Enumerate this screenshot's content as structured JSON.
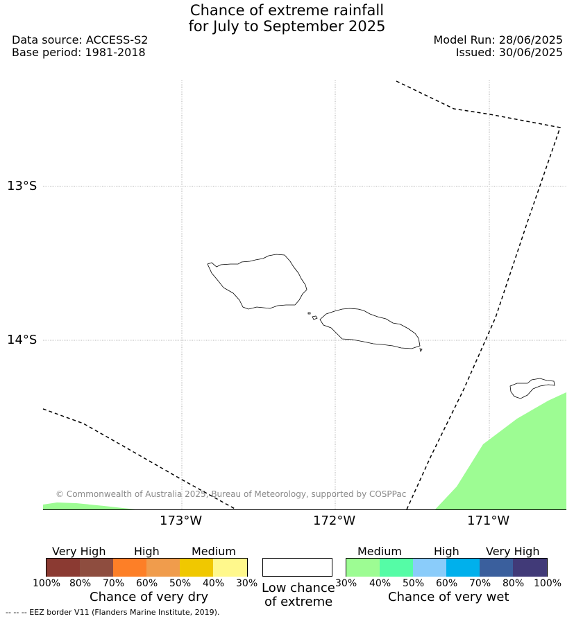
{
  "title": {
    "line1": "Chance of extreme rainfall",
    "line2": "for July to September 2025"
  },
  "info": {
    "source": "Data source: ACCESS-S2",
    "base": "Base period: 1981-2018",
    "model_run": "Model Run: 28/06/2025",
    "issued": "Issued: 30/06/2025"
  },
  "map": {
    "lat_labels": [
      "13°S",
      "14°S"
    ],
    "lon_labels": [
      "173°W",
      "172°W",
      "171°W"
    ],
    "copyright": "© Commonwealth of Australia 2025, Bureau of Meteorology, supported by COSPPac",
    "wet_area_color": "#9dfc93",
    "land_outline_color": "#000000"
  },
  "legend": {
    "dry": {
      "categories": [
        "Very High",
        "High",
        "Medium"
      ],
      "colors": [
        "#8b3a32",
        "#8e4d3f",
        "#fd7f27",
        "#f09c4c",
        "#f0c800",
        "#fff88c"
      ],
      "ticks": [
        "100%",
        "80%",
        "70%",
        "60%",
        "50%",
        "40%",
        "30%"
      ],
      "title": "Chance of very dry"
    },
    "low": {
      "line1": "Low chance",
      "line2": "of extreme",
      "color": "#ffffff"
    },
    "wet": {
      "categories": [
        "Medium",
        "High",
        "Very High"
      ],
      "colors": [
        "#9dfc93",
        "#55fca6",
        "#8accfa",
        "#00b0ec",
        "#3a5f9d",
        "#413a78"
      ],
      "ticks": [
        "30%",
        "40%",
        "50%",
        "60%",
        "70%",
        "80%",
        "100%"
      ],
      "title": "Chance of very wet"
    },
    "eez_note": "--  --  -- EEZ border V11 (Flanders Marine Institute, 2019)."
  }
}
